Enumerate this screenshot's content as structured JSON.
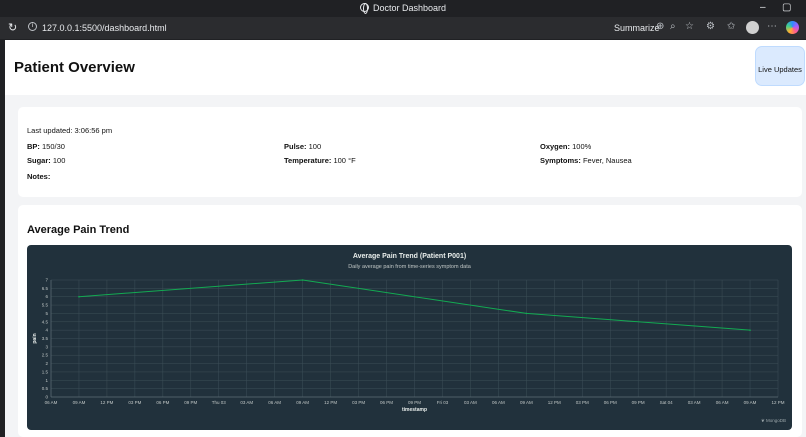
{
  "browser": {
    "window_title": "Doctor Dashboard",
    "url": "127.0.0.1:5500/dashboard.html",
    "summarize_label": "Summarize",
    "minimize_symbol": "–",
    "restore_symbol": "▢"
  },
  "header": {
    "title": "Patient Overview",
    "live_updates_label": "Live Updates"
  },
  "patient_info": {
    "last_updated": "Last updated: 3:06:56 pm",
    "bp_label": "BP:",
    "bp_value": "150/30",
    "pulse_label": "Pulse:",
    "pulse_value": "100",
    "oxygen_label": "Oxygen:",
    "oxygen_value": "100%",
    "sugar_label": "Sugar:",
    "sugar_value": "100",
    "temperature_label": "Temperature:",
    "temperature_value": "100 °F",
    "symptoms_label": "Symptoms:",
    "symptoms_value": "Fever, Nausea",
    "notes_label": "Notes:",
    "notes_value": ""
  },
  "pain_section": {
    "heading": "Average Pain Trend"
  },
  "chart_data": {
    "type": "line",
    "title": "Average Pain Trend (Patient P001)",
    "subtitle": "Daily average pain from time-series symptom data",
    "xlabel": "timestamp",
    "ylabel": "pain",
    "brand": "MongoDB",
    "ylim": [
      0,
      7
    ],
    "y_ticks": [
      "0",
      "0.5",
      "1",
      "1.5",
      "2",
      "2.5",
      "3",
      "3.5",
      "4",
      "4.5",
      "5",
      "5.5",
      "6",
      "6.5",
      "7"
    ],
    "x_ticks": [
      "06 AM",
      "09 AM",
      "12 PM",
      "03 PM",
      "06 PM",
      "09 PM",
      "Thu 03",
      "03 AM",
      "06 AM",
      "09 AM",
      "12 PM",
      "03 PM",
      "06 PM",
      "09 PM",
      "Fri 03",
      "03 AM",
      "06 AM",
      "09 AM",
      "12 PM",
      "03 PM",
      "06 PM",
      "09 PM",
      "Sat 04",
      "03 AM",
      "06 AM",
      "09 AM",
      "12 PM"
    ],
    "grid": true,
    "line_color": "#13aa52",
    "series": [
      {
        "points": [
          {
            "x": 1,
            "y": 6.0
          },
          {
            "x": 9,
            "y": 7.0
          },
          {
            "x": 17,
            "y": 5.0
          },
          {
            "x": 25,
            "y": 4.0
          }
        ]
      }
    ]
  }
}
